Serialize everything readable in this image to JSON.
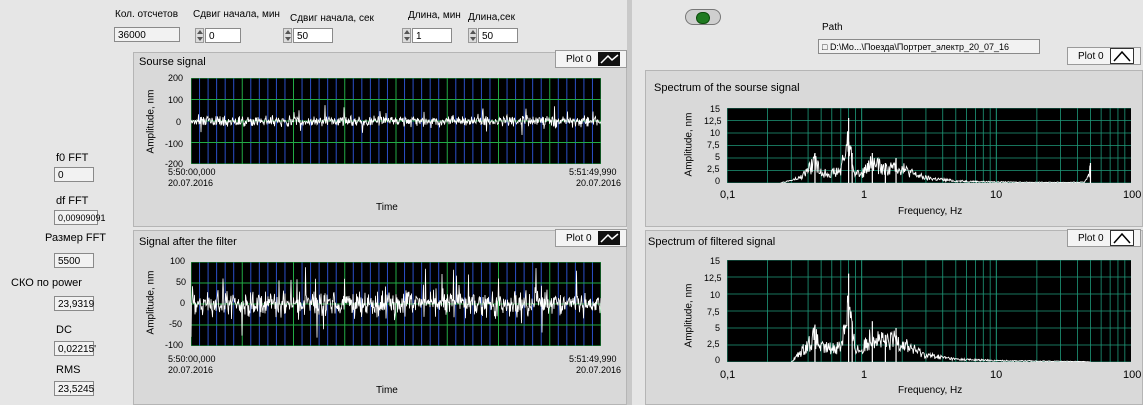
{
  "top": {
    "count": {
      "label": "Кол. отсчетов",
      "value": "36000"
    },
    "shift_min": {
      "label": "Сдвиг начала, мин",
      "value": "0"
    },
    "shift_sec": {
      "label": "Сдвиг начала, сек",
      "value": "50"
    },
    "len_min": {
      "label": "Длина, мин",
      "value": "1"
    },
    "len_sec": {
      "label": "Длина,сек",
      "value": "50"
    },
    "path": {
      "label": "Path",
      "value": "D:\\Mo...\\Поезда\\Портрет_электр_20_07_16"
    }
  },
  "left": {
    "f0": {
      "label": "f0 FFT",
      "value": "0"
    },
    "df": {
      "label": "df FFT",
      "value": "0,00909091"
    },
    "fft_size": {
      "label": "Размер FFT",
      "value": "5500"
    },
    "sko": {
      "label": "СКО по power",
      "value": "23,9319"
    },
    "dc": {
      "label": "DC",
      "value": "0,02215'"
    },
    "rms": {
      "label": "RMS",
      "value": "23,5245"
    }
  },
  "legend_label": "Plot 0",
  "charts": {
    "source": {
      "title": "Sourse signal",
      "ylabel": "Amplitude, nm",
      "xlabel": "Time",
      "yticks": [
        "200",
        "100",
        "0",
        "-100",
        "-200"
      ],
      "xstart_time": "5:50:00,000",
      "xstart_date": "20.07.2016",
      "xend_time": "5:51:49,990",
      "xend_date": "20.07.2016"
    },
    "filtered": {
      "title": "Signal after the filter",
      "ylabel": "Amplitude, nm",
      "xlabel": "Time",
      "yticks": [
        "100",
        "50",
        "0",
        "-50",
        "-100"
      ],
      "xstart_time": "5:50:00,000",
      "xstart_date": "20.07.2016",
      "xend_time": "5:51:49,990",
      "xend_date": "20.07.2016"
    },
    "spec_source": {
      "title": "Spectrum of the sourse signal",
      "ylabel": "Amplitude, nm",
      "xlabel": "Frequency, Hz",
      "yticks": [
        "15",
        "12,5",
        "10",
        "7,5",
        "5",
        "2,5",
        "0"
      ],
      "xticks": [
        "0,1",
        "1",
        "10",
        "100"
      ]
    },
    "spec_filtered": {
      "title": "Spectrum of filtered signal",
      "ylabel": "Amplitude, nm",
      "xlabel": "Frequency, Hz",
      "yticks": [
        "15",
        "12,5",
        "10",
        "7,5",
        "5",
        "2,5",
        "0"
      ],
      "xticks": [
        "0,1",
        "1",
        "10",
        "100"
      ]
    }
  },
  "chart_data": [
    {
      "type": "line",
      "title": "Sourse signal",
      "xlabel": "Time",
      "ylabel": "Amplitude, nm",
      "ylim": [
        -200,
        200
      ],
      "x_range": [
        "5:50:00,000 20.07.2016",
        "5:51:49,990 20.07.2016"
      ],
      "series": [
        {
          "amplitude_range": [
            -75,
            75
          ]
        }
      ],
      "grid": true
    },
    {
      "type": "line",
      "title": "Signal after the filter",
      "xlabel": "Time",
      "ylabel": "Amplitude, nm",
      "ylim": [
        -100,
        100
      ],
      "x_range": [
        "5:50:00,000 20.07.2016",
        "5:51:49,990 20.07.2016"
      ],
      "series": [
        {
          "amplitude_range": [
            -90,
            90
          ]
        }
      ],
      "grid": true
    },
    {
      "type": "line",
      "title": "Spectrum of the sourse signal",
      "xlabel": "Frequency, Hz",
      "ylabel": "Amplitude, nm",
      "x_scale": "log",
      "xlim": [
        0.1,
        100
      ],
      "ylim": [
        0,
        15
      ],
      "series": [
        {
          "x": [
            0.25,
            0.35,
            0.45,
            0.5,
            0.6,
            0.7,
            0.8,
            0.85,
            0.9,
            1.0,
            1.2,
            1.5,
            1.8,
            2.5,
            3,
            5,
            10,
            20,
            45,
            50
          ],
          "y": [
            0,
            1.5,
            6,
            3,
            3,
            3.5,
            13,
            6,
            3,
            2.5,
            6,
            4,
            5,
            2.5,
            1.5,
            0.6,
            0.3,
            0.2,
            0.2,
            4
          ]
        }
      ],
      "grid": true
    },
    {
      "type": "line",
      "title": "Spectrum of filtered signal",
      "xlabel": "Frequency, Hz",
      "ylabel": "Amplitude, nm",
      "x_scale": "log",
      "xlim": [
        0.1,
        100
      ],
      "ylim": [
        0,
        15
      ],
      "series": [
        {
          "x": [
            0.3,
            0.35,
            0.45,
            0.5,
            0.6,
            0.7,
            0.8,
            0.85,
            0.9,
            1.0,
            1.2,
            1.5,
            1.8,
            2.5,
            3,
            5,
            10,
            20,
            45,
            50
          ],
          "y": [
            0,
            2,
            5.5,
            3,
            3,
            3.5,
            13,
            6,
            3,
            2.5,
            6,
            4,
            5,
            2.5,
            1.5,
            0.6,
            0.3,
            0.2,
            0.1,
            0
          ]
        }
      ],
      "grid": true
    }
  ]
}
